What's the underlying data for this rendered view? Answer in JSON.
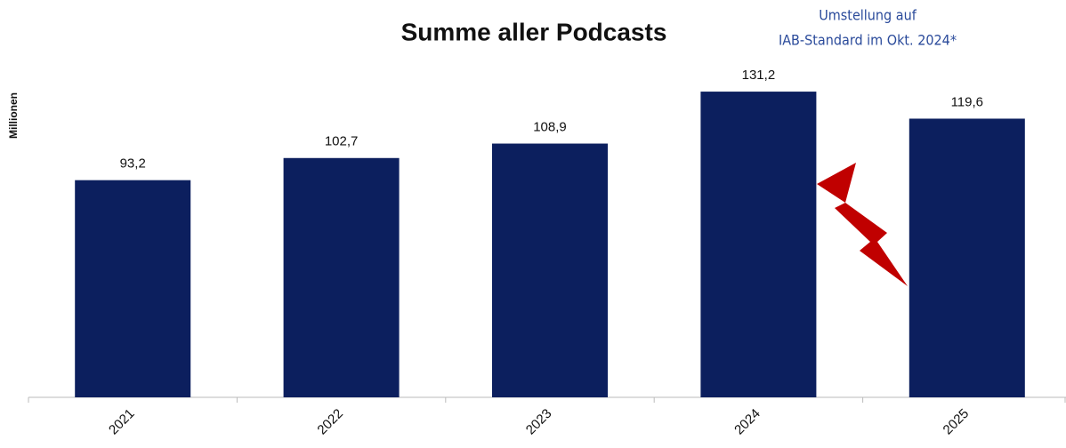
{
  "chart_data": {
    "type": "bar",
    "title": "Summe aller Podcasts",
    "y_label": "Millionen",
    "annotation": [
      "Umstellung auf",
      "IAB-Standard im Okt. 2024*"
    ],
    "categories": [
      "2021",
      "2022",
      "2023",
      "2024",
      "2025"
    ],
    "values": [
      93.2,
      102.7,
      108.9,
      131.2,
      119.6
    ],
    "value_labels": [
      "93,2",
      "102,7",
      "108,9",
      "131,2",
      "119,6"
    ],
    "color": "#0c1f5e",
    "ylim": [
      0,
      140
    ]
  }
}
